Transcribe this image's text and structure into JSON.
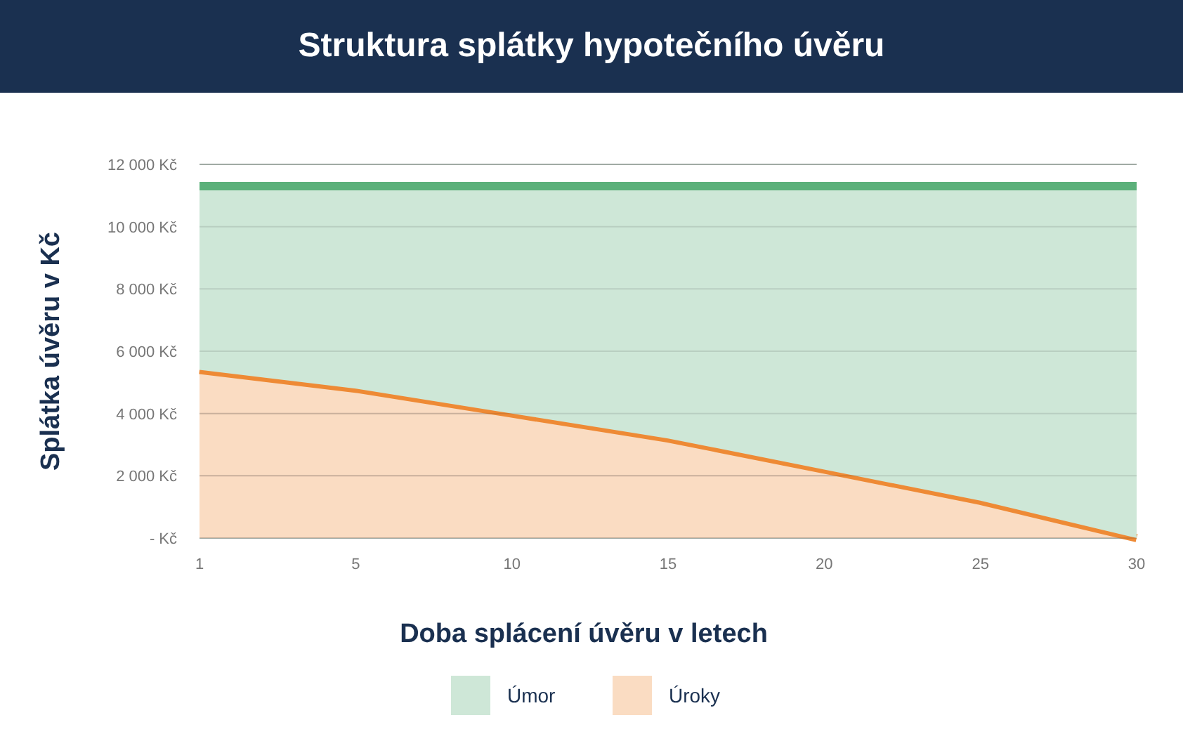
{
  "chart_data": {
    "type": "area",
    "title": "Struktura splátky hypotečního úvěru",
    "xlabel": "Doba splácení úvěru v letech",
    "ylabel": "Splátka úvěru v Kč",
    "categories": [
      "1",
      "5",
      "10",
      "15",
      "20",
      "25",
      "30"
    ],
    "stacked": true,
    "series": [
      {
        "name": "Úroky",
        "color": "#ee8a35",
        "values": [
          5400,
          4800,
          4000,
          3200,
          2200,
          1200,
          0
        ]
      },
      {
        "name": "Úmor",
        "color": "#5bb07a",
        "values": [
          5900,
          6500,
          7300,
          8100,
          9100,
          10100,
          11300
        ]
      }
    ],
    "ylim": [
      0,
      12000
    ],
    "yticks": [
      {
        "value": 0,
        "label": "- Kč"
      },
      {
        "value": 2000,
        "label": "2 000 Kč"
      },
      {
        "value": 4000,
        "label": "4 000 Kč"
      },
      {
        "value": 6000,
        "label": "6 000 Kč"
      },
      {
        "value": 8000,
        "label": "8 000 Kč"
      },
      {
        "value": 10000,
        "label": "10 000 Kč"
      },
      {
        "value": 12000,
        "label": "12 000 Kč"
      }
    ],
    "grid": "y",
    "legend": "bottom"
  }
}
